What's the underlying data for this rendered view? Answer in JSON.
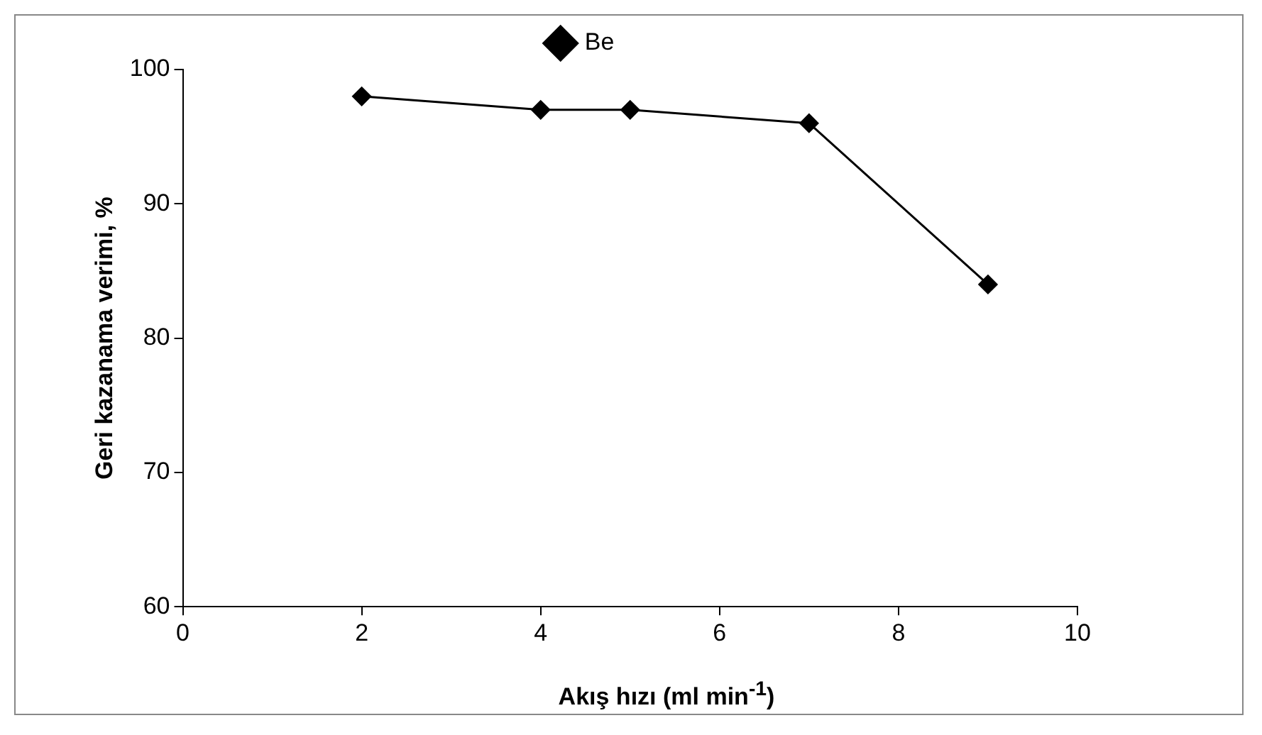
{
  "chart_data": {
    "type": "line",
    "xlabel": "Akış hızı (ml min$^{-1}$)",
    "ylabel": "Geri kazanama verimi, %",
    "x": [
      2,
      4,
      5,
      7,
      9
    ],
    "series": [
      {
        "name": "Be",
        "color": "#000000",
        "values": [
          98,
          97,
          97,
          96,
          84
        ]
      }
    ],
    "xlim": [
      0,
      10
    ],
    "xticks": [
      0,
      2,
      4,
      6,
      8,
      10
    ],
    "ylim": [
      60,
      100
    ],
    "yticks": [
      60,
      70,
      80,
      90,
      100
    ],
    "grid": false,
    "legend": "top",
    "marker": "diamond",
    "line_style": "solid"
  }
}
